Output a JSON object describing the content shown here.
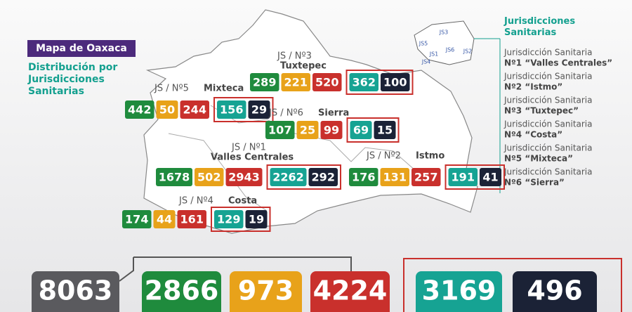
{
  "header": {
    "title": "Mapa de Oaxaca",
    "subtitle": "Distribución por Jurisdicciones Sanitarias"
  },
  "jurisdictions": [
    {
      "prefix": "JS / Nº3",
      "name": "Tuxtepec",
      "values": [
        289,
        221,
        520,
        362,
        100
      ]
    },
    {
      "prefix": "JS / Nº5",
      "name": "Mixteca",
      "values": [
        442,
        50,
        244,
        156,
        29
      ]
    },
    {
      "prefix": "JS / Nº6",
      "name": "Sierra",
      "values": [
        107,
        25,
        99,
        69,
        15
      ]
    },
    {
      "prefix": "JS / Nº1",
      "name": "Valles Centrales",
      "values": [
        1678,
        502,
        2943,
        2262,
        292
      ]
    },
    {
      "prefix": "JS / Nº2",
      "name": "Istmo",
      "values": [
        176,
        131,
        257,
        191,
        41
      ]
    },
    {
      "prefix": "JS / Nº4",
      "name": "Costa",
      "values": [
        174,
        44,
        161,
        129,
        19
      ]
    }
  ],
  "legend": {
    "title": "Jurisdicciones Sanitarias",
    "minimap": [
      "JS3",
      "JS5",
      "JS1",
      "JS6",
      "JS2",
      "JS4"
    ],
    "items": [
      {
        "line1": "Jurisdicción Sanitaria",
        "line2": "Nº1 “Valles Centrales”"
      },
      {
        "line1": "Jurisdicción Sanitaria",
        "line2": "Nº2 “Istmo”"
      },
      {
        "line1": "Jurisdicción Sanitaria",
        "line2": "Nº3 “Tuxtepec”"
      },
      {
        "line1": "Jurisdicción Sanitaria",
        "line2": "Nº4 “Costa”"
      },
      {
        "line1": "Jurisdicción Sanitaria",
        "line2": "Nº5 “Mixteca”"
      },
      {
        "line1": "Jurisdicción Sanitaria",
        "line2": "Nº6 “Sierra”"
      }
    ]
  },
  "totals": [
    8063,
    2866,
    973,
    4224,
    3169,
    496
  ]
}
